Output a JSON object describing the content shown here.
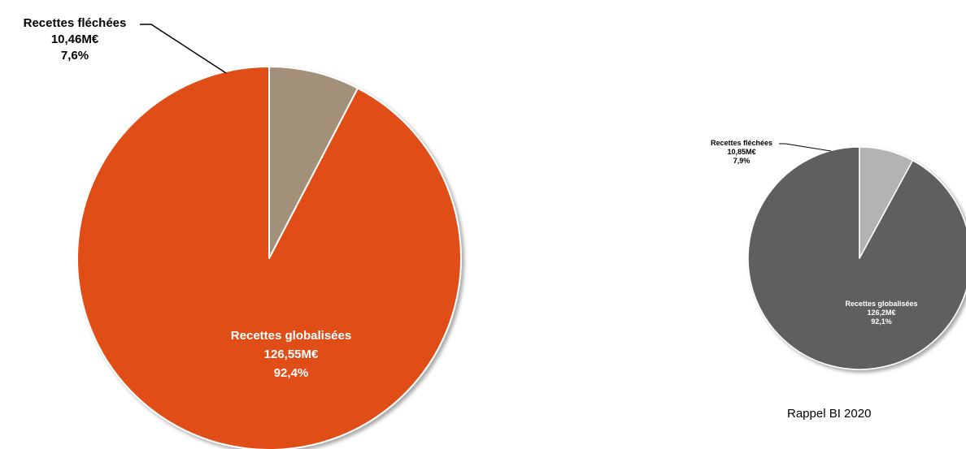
{
  "chart_data": [
    {
      "type": "pie",
      "title": "",
      "slices": [
        {
          "name": "Recettes globalisées",
          "amount_label": "126,55M€",
          "pct_label": "92,4%",
          "value": 126.55,
          "percent": 92.4,
          "color": "#E04E17",
          "label_color": "#FFFFFF"
        },
        {
          "name": "Recettes fléchées",
          "amount_label": "10,46M€",
          "pct_label": "7,6%",
          "value": 10.46,
          "percent": 7.6,
          "color": "#A29078",
          "label_color": "#000000"
        }
      ]
    },
    {
      "type": "pie",
      "title": "",
      "slices": [
        {
          "name": "Recettes globalisées",
          "amount_label": "126,2M€",
          "pct_label": "92,1%",
          "value": 126.2,
          "percent": 92.1,
          "color": "#5E5E5E",
          "label_color": "#FFFFFF"
        },
        {
          "name": "Recettes fléchées",
          "amount_label": "10,85M€",
          "pct_label": "7,9%",
          "value": 10.85,
          "percent": 7.9,
          "color": "#B3B3B3",
          "label_color": "#000000"
        }
      ]
    }
  ],
  "caption": "Rappel BI 2020"
}
